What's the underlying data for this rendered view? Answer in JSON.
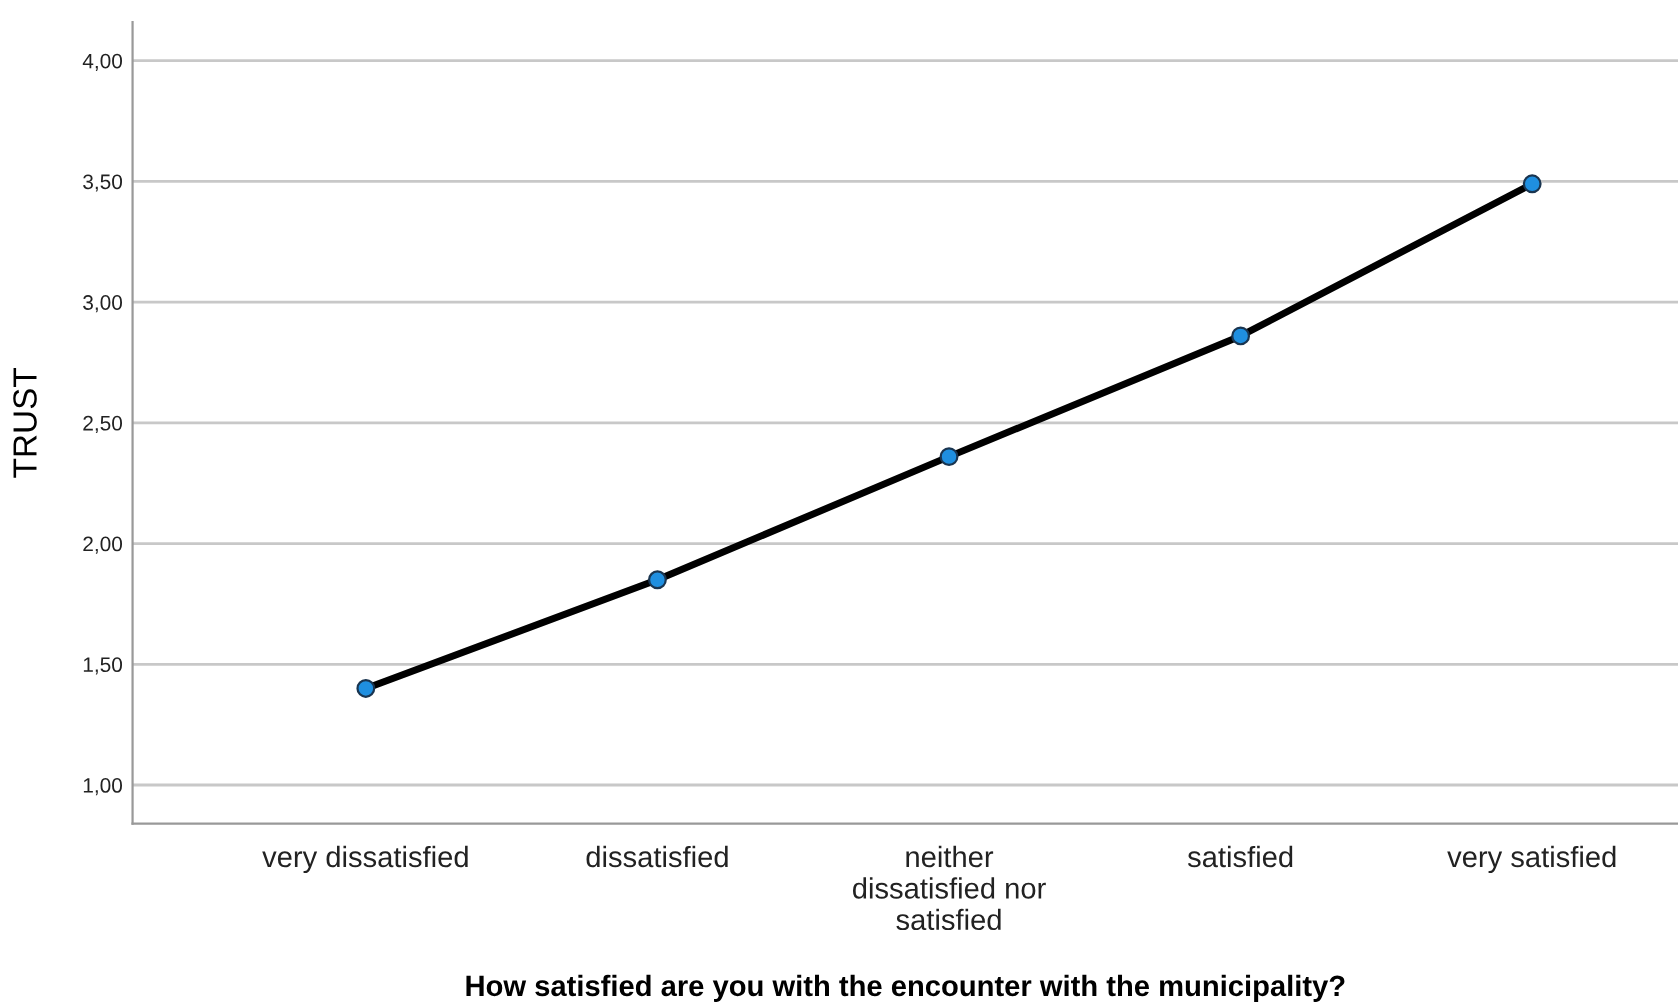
{
  "chart_data": {
    "type": "line",
    "xlabel": "How satisfied are you with the encounter with the municipality?",
    "ylabel": "TRUST",
    "categories": [
      "very dissatisfied",
      "dissatisfied",
      "neither\ndissatisfied nor\nsatisfied",
      "satisfied",
      "very satisfied"
    ],
    "series": [
      {
        "color": "#000000",
        "values": [
          1.4,
          1.85,
          2.36,
          2.86,
          3.49
        ]
      }
    ],
    "marker": "circle",
    "line_style": "solid",
    "ylim": [
      0.84,
      4.16
    ],
    "yticks": [
      {
        "value": 1,
        "label": "1,00"
      },
      {
        "value": 1.5,
        "label": "1,50"
      },
      {
        "value": 2,
        "label": "2,00"
      },
      {
        "value": 2.5,
        "label": "2,50"
      },
      {
        "value": 3,
        "label": "3,00"
      },
      {
        "value": 3.5,
        "label": "3,50"
      },
      {
        "value": 4,
        "label": "4,00"
      }
    ],
    "grid": "y"
  }
}
